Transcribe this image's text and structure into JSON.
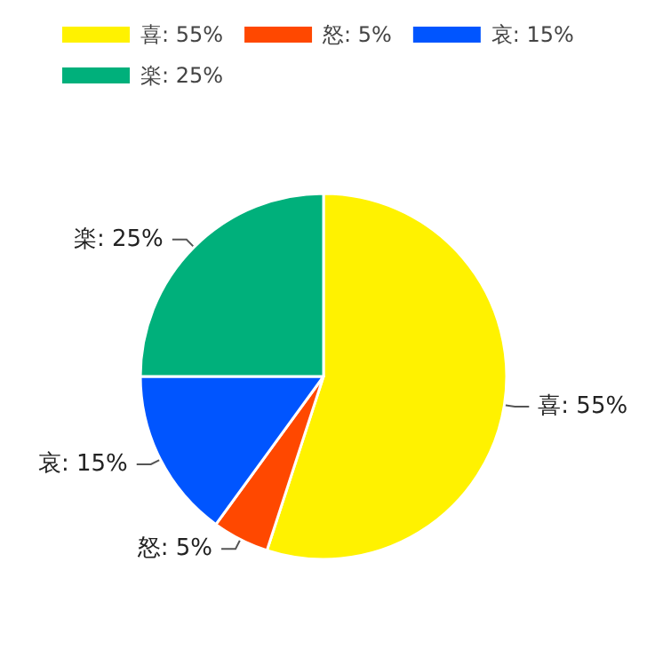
{
  "chart_data": {
    "type": "pie",
    "categories": [
      "喜",
      "怒",
      "哀",
      "楽"
    ],
    "values": [
      55,
      5,
      15,
      25
    ],
    "value_labels": [
      "55%",
      "5%",
      "15%",
      "25%"
    ],
    "colors": [
      "#fff200",
      "#ff4800",
      "#0055ff",
      "#00b07b"
    ],
    "legend": "top left"
  }
}
